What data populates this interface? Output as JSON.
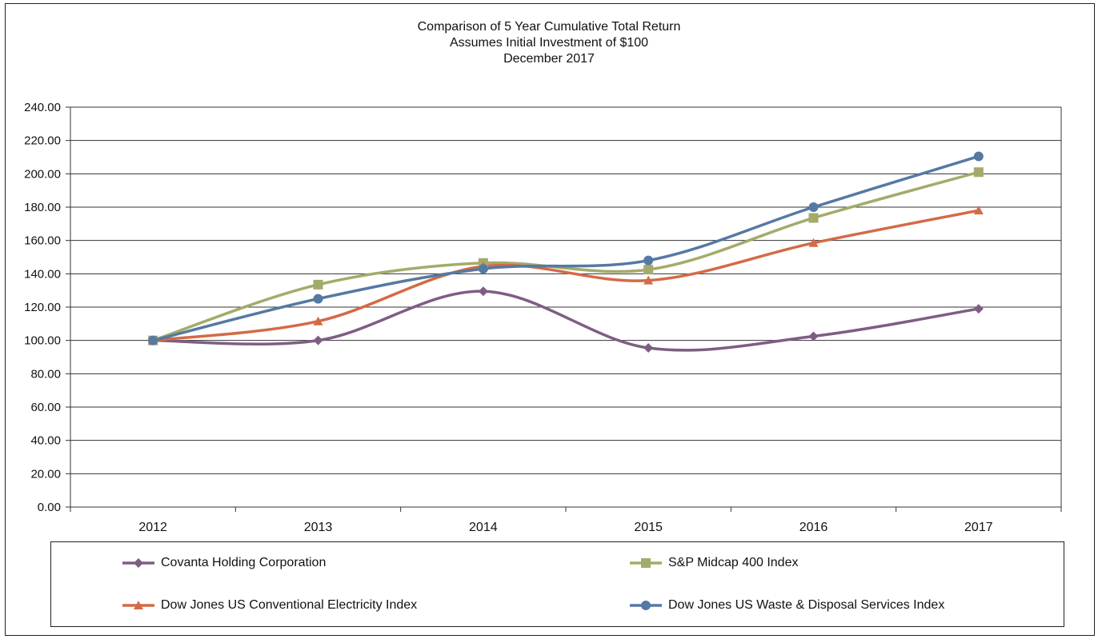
{
  "chart_data": {
    "type": "line",
    "title": [
      "Comparison  of 5 Year Cumulative  Total Return",
      "Assumes Initial Investment  of $100",
      "December 2017"
    ],
    "categories": [
      "2012",
      "2013",
      "2014",
      "2015",
      "2016",
      "2017"
    ],
    "ylim": [
      0,
      240
    ],
    "yticks": [
      "0.00",
      "20.00",
      "40.00",
      "60.00",
      "80.00",
      "100.00",
      "120.00",
      "140.00",
      "160.00",
      "180.00",
      "200.00",
      "220.00",
      "240.00"
    ],
    "grid": true,
    "legend_position": "bottom",
    "series": [
      {
        "name": "Covanta Holding Corporation",
        "color": "#7d5e82",
        "marker": "diamond",
        "values": [
          100,
          100,
          129.5,
          95.5,
          102.5,
          119
        ]
      },
      {
        "name": "S&P Midcap 400 Index",
        "color": "#a4ab6a",
        "marker": "square",
        "values": [
          100,
          133.5,
          146.5,
          142.5,
          173.5,
          201
        ]
      },
      {
        "name": "Dow Jones US Conventional Electricity Index",
        "color": "#d46a47",
        "marker": "triangle",
        "values": [
          100,
          111.5,
          144.5,
          136,
          158.5,
          178
        ]
      },
      {
        "name": "Dow Jones US Waste & Disposal Services Index",
        "color": "#5579a3",
        "marker": "circle",
        "values": [
          100,
          125,
          143,
          148,
          180,
          210.5
        ]
      }
    ]
  }
}
